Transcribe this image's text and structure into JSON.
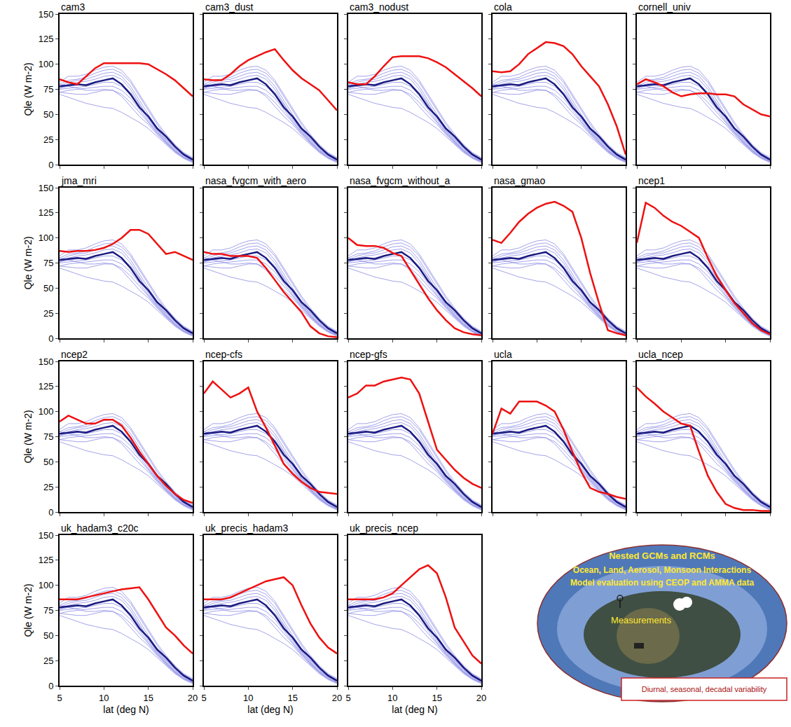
{
  "chart_data": {
    "type": "line",
    "x_label": "lat (deg N)",
    "y_label": "Qle (W m-2)",
    "xlim": [
      5,
      20
    ],
    "ylim": [
      0,
      150
    ],
    "xticks": [
      5,
      10,
      15,
      20
    ],
    "yticks": [
      0,
      25,
      50,
      75,
      100,
      125,
      150
    ],
    "grid": false,
    "x": [
      5,
      6,
      7,
      8,
      9,
      10,
      11,
      12,
      13,
      14,
      15,
      16,
      17,
      18,
      19,
      20
    ],
    "reference_series": [
      {
        "color": "#8c8ce6",
        "values": [
          82,
          88,
          88,
          90,
          94,
          97,
          98,
          94,
          84,
          70,
          56,
          42,
          30,
          20,
          12,
          7
        ]
      },
      {
        "color": "#8c8ce6",
        "values": [
          80,
          84,
          85,
          87,
          91,
          94,
          95,
          91,
          82,
          68,
          54,
          40,
          28,
          18,
          11,
          6
        ]
      },
      {
        "color": "#8c8ce6",
        "values": [
          78,
          82,
          84,
          85,
          88,
          91,
          92,
          88,
          78,
          64,
          50,
          37,
          26,
          17,
          10,
          5
        ]
      },
      {
        "color": "#8c8ce6",
        "values": [
          76,
          80,
          82,
          83,
          85,
          88,
          89,
          85,
          75,
          61,
          47,
          34,
          24,
          15,
          9,
          4
        ]
      },
      {
        "color": "#8c8ce6",
        "values": [
          80,
          78,
          79,
          80,
          82,
          84,
          85,
          80,
          72,
          60,
          47,
          35,
          25,
          16,
          9,
          4
        ]
      },
      {
        "color": "#8c8ce6",
        "values": [
          75,
          76,
          77,
          78,
          80,
          82,
          82,
          78,
          70,
          58,
          45,
          33,
          23,
          14,
          8,
          3
        ]
      },
      {
        "color": "#8c8ce6",
        "values": [
          72,
          74,
          75,
          76,
          77,
          78,
          78,
          74,
          66,
          55,
          43,
          32,
          22,
          14,
          7,
          3
        ]
      },
      {
        "color": "#8c8ce6",
        "values": [
          72,
          71,
          70,
          70,
          72,
          74,
          74,
          70,
          62,
          52,
          42,
          31,
          22,
          13,
          7,
          3
        ]
      },
      {
        "color": "#8c8ce6",
        "values": [
          70,
          67,
          64,
          61,
          59,
          57,
          56,
          52,
          47,
          42,
          36,
          28,
          20,
          12,
          6,
          2
        ]
      },
      {
        "color": "#8c8ce6",
        "values": [
          76,
          78,
          76,
          74,
          74,
          75,
          74,
          68,
          58,
          48,
          40,
          30,
          21,
          13,
          7,
          3
        ]
      },
      {
        "color": "#1a1a80",
        "values": [
          78,
          79,
          80,
          79,
          82,
          84,
          86,
          80,
          70,
          57,
          48,
          36,
          28,
          18,
          10,
          5
        ]
      }
    ],
    "panels": [
      {
        "title": "cam3",
        "series": [
          {
            "color": "#ee1111",
            "values": [
              85,
              82,
              80,
              88,
              96,
              101,
              101,
              101,
              101,
              101,
              100,
              95,
              90,
              84,
              76,
              68
            ]
          }
        ]
      },
      {
        "title": "cam3_dust",
        "series": [
          {
            "color": "#ee1111",
            "values": [
              85,
              84,
              84,
              90,
              98,
              104,
              108,
              112,
              115,
              104,
              94,
              86,
              80,
              74,
              64,
              54
            ]
          }
        ]
      },
      {
        "title": "cam3_nodust",
        "series": [
          {
            "color": "#ee1111",
            "values": [
              82,
              80,
              80,
              88,
              98,
              107,
              108,
              108,
              108,
              106,
              102,
              97,
              90,
              83,
              76,
              68
            ]
          }
        ]
      },
      {
        "title": "cola",
        "series": [
          {
            "color": "#ee1111",
            "values": [
              93,
              92,
              93,
              100,
              110,
              116,
              122,
              121,
              118,
              110,
              98,
              88,
              78,
              60,
              38,
              10
            ]
          }
        ]
      },
      {
        "title": "cornell_univ",
        "series": [
          {
            "color": "#ee1111",
            "values": [
              80,
              85,
              82,
              78,
              72,
              68,
              70,
              71,
              71,
              70,
              70,
              68,
              60,
              55,
              50,
              48
            ]
          }
        ]
      },
      {
        "title": "jma_mri",
        "series": [
          {
            "color": "#ee1111",
            "values": [
              87,
              86,
              87,
              87,
              88,
              90,
              94,
              100,
              108,
              108,
              104,
              94,
              84,
              86,
              82,
              78
            ]
          }
        ]
      },
      {
        "title": "nasa_fvgcm_with_aero",
        "series": [
          {
            "color": "#ee1111",
            "values": [
              86,
              84,
              84,
              82,
              82,
              82,
              80,
              70,
              58,
              46,
              36,
              26,
              12,
              5,
              2,
              1
            ]
          }
        ]
      },
      {
        "title": "nasa_fvgcm_without_a",
        "series": [
          {
            "color": "#ee1111",
            "values": [
              100,
              93,
              92,
              92,
              90,
              85,
              82,
              68,
              54,
              40,
              28,
              18,
              10,
              6,
              4,
              3
            ]
          }
        ]
      },
      {
        "title": "nasa_gmao",
        "series": [
          {
            "color": "#ee1111",
            "values": [
              98,
              95,
              105,
              116,
              124,
              130,
              134,
              136,
              132,
              126,
              100,
              65,
              35,
              8,
              5,
              3
            ]
          }
        ]
      },
      {
        "title": "ncep1",
        "series": [
          {
            "color": "#ee1111",
            "values": [
              95,
              135,
              130,
              122,
              116,
              112,
              106,
              100,
              80,
              62,
              48,
              35,
              25,
              15,
              8,
              4
            ]
          }
        ]
      },
      {
        "title": "ncep2",
        "series": [
          {
            "color": "#ee1111",
            "values": [
              90,
              96,
              92,
              88,
              88,
              92,
              92,
              86,
              74,
              60,
              48,
              36,
              26,
              18,
              12,
              9
            ]
          }
        ]
      },
      {
        "title": "ncep-cfs",
        "series": [
          {
            "color": "#ee1111",
            "values": [
              118,
              130,
              122,
              114,
              118,
              124,
              100,
              84,
              66,
              48,
              38,
              30,
              24,
              20,
              19,
              18
            ]
          }
        ]
      },
      {
        "title": "ncep-gfs",
        "series": [
          {
            "color": "#ee1111",
            "values": [
              114,
              118,
              126,
              126,
              130,
              132,
              134,
              132,
              118,
              90,
              62,
              52,
              42,
              34,
              28,
              24
            ]
          }
        ]
      },
      {
        "title": "ucla",
        "series": [
          {
            "color": "#ee1111",
            "values": [
              78,
              103,
              98,
              110,
              110,
              110,
              106,
              100,
              82,
              60,
              40,
              24,
              20,
              18,
              15,
              13
            ]
          }
        ]
      },
      {
        "title": "ucla_ncep",
        "series": [
          {
            "color": "#ee1111",
            "values": [
              124,
              115,
              108,
              100,
              94,
              88,
              86,
              60,
              36,
              20,
              8,
              4,
              2,
              2,
              1,
              1
            ]
          }
        ]
      },
      {
        "title": "uk_hadam3_c20c",
        "series": [
          {
            "color": "#ee1111",
            "values": [
              86,
              86,
              86,
              88,
              90,
              92,
              94,
              96,
              97,
              98,
              86,
              72,
              58,
              50,
              40,
              32
            ]
          }
        ]
      },
      {
        "title": "uk_precis_hadam3",
        "series": [
          {
            "color": "#ee1111",
            "values": [
              86,
              86,
              86,
              88,
              92,
              96,
              100,
              104,
              106,
              108,
              100,
              80,
              62,
              48,
              38,
              32
            ]
          }
        ]
      },
      {
        "title": "uk_precis_ncep",
        "series": [
          {
            "color": "#ee1111",
            "values": [
              86,
              86,
              86,
              86,
              88,
              92,
              100,
              108,
              116,
              120,
              112,
              88,
              58,
              44,
              30,
              22
            ]
          }
        ]
      }
    ]
  },
  "logo": {
    "texts": [
      "Nested GCMs and RCMs",
      "Ocean, Land, Aerosol, Monsoon Interactions",
      "Model evaluation using CEOP and AMMA data",
      "Measurements",
      "Diurnal, seasonal, decadal variability"
    ]
  }
}
